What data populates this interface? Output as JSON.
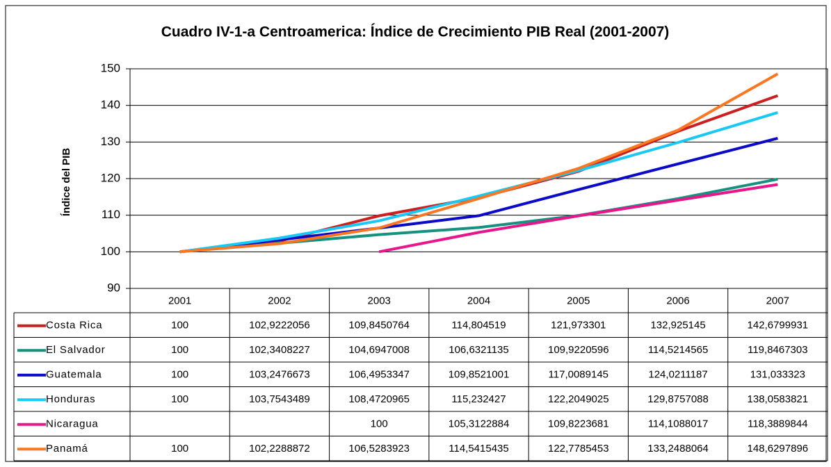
{
  "chart_data": {
    "type": "line",
    "title": "Cuadro IV-1-a Centroamerica: Índice de Crecimiento PIB Real (2001-2007)",
    "y_label": "Índice del PIB",
    "categories": [
      "2001",
      "2002",
      "2003",
      "2004",
      "2005",
      "2006",
      "2007"
    ],
    "ylim": [
      90,
      150
    ],
    "yticks": [
      90,
      100,
      110,
      120,
      130,
      140,
      150
    ],
    "grid": true,
    "series": [
      {
        "name": "Costa Rica",
        "color": "#cc1f1f",
        "values": [
          100,
          102.9222056,
          109.8450764,
          114.804519,
          121.973301,
          132.925145,
          142.6799931
        ],
        "value_labels": [
          "100",
          "102,9222056",
          "109,8450764",
          "114,804519",
          "121,973301",
          "132,925145",
          "142,6799931"
        ]
      },
      {
        "name": "El Salvador",
        "color": "#16917f",
        "values": [
          100,
          102.3408227,
          104.6947008,
          106.6321135,
          109.9220596,
          114.5214565,
          119.8467303
        ],
        "value_labels": [
          "100",
          "102,3408227",
          "104,6947008",
          "106,6321135",
          "109,9220596",
          "114,5214565",
          "119,8467303"
        ]
      },
      {
        "name": "Guatemala",
        "color": "#0a0ac8",
        "values": [
          100,
          103.2476673,
          106.4953347,
          109.8521001,
          117.0089145,
          124.0211187,
          131.033323
        ],
        "value_labels": [
          "100",
          "103,2476673",
          "106,4953347",
          "109,8521001",
          "117,0089145",
          "124,0211187",
          "131,033323"
        ]
      },
      {
        "name": "Honduras",
        "color": "#19c8f5",
        "values": [
          100,
          103.7543489,
          108.4720965,
          115.232427,
          122.2049025,
          129.8757088,
          138.0583821
        ],
        "value_labels": [
          "100",
          "103,7543489",
          "108,4720965",
          "115,232427",
          "122,2049025",
          "129,8757088",
          "138,0583821"
        ]
      },
      {
        "name": "Nicaragua",
        "color": "#e8168c",
        "values": [
          null,
          null,
          100,
          105.3122884,
          109.8223681,
          114.1088017,
          118.3889844
        ],
        "value_labels": [
          null,
          null,
          "100",
          "105,3122884",
          "109,8223681",
          "114,1088017",
          "118,3889844"
        ]
      },
      {
        "name": "Panamá",
        "color": "#fb7621",
        "values": [
          100,
          102.2288872,
          106.5283923,
          114.5415435,
          122.7785453,
          133.2488064,
          148.6297896
        ],
        "value_labels": [
          "100",
          "102,2288872",
          "106,5283923",
          "114,5415435",
          "122,7785453",
          "133,2488064",
          "148,6297896"
        ]
      }
    ]
  }
}
